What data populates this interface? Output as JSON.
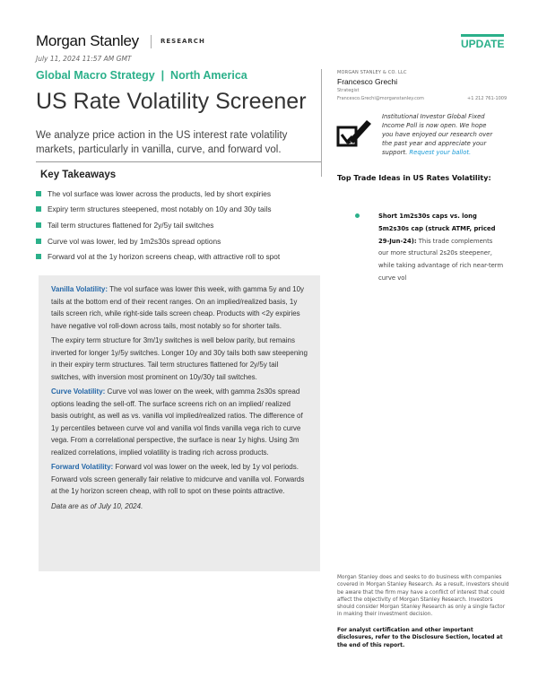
{
  "header": {
    "brand": "Morgan Stanley",
    "section": "RESEARCH",
    "badge": "UPDATE",
    "date": "July 11, 2024 11:57 AM GMT",
    "series": "Global Macro Strategy  |  North America",
    "title": "US Rate Volatility Screener",
    "subtitle": "We analyze price action in the US interest rate volatility markets, particularly in vanilla, curve, and forward vol."
  },
  "key_takeaways": {
    "title": "Key Takeaways",
    "items": [
      "The vol surface was lower across the products, led by short expiries",
      "Expiry term structures steepened, most notably on 10y and 30y tails",
      "Tail term structures flattened for 2y/5y tail switches",
      "Curve vol was lower, led by 1m2s30s spread options",
      "Forward vol at the 1y horizon screens cheap, with attractive roll to spot"
    ]
  },
  "summary": {
    "vanilla_label": "Vanilla Volatility:",
    "vanilla_text": " The vol surface was lower this week, with gamma 5y and 10y tails at the bottom end of their recent ranges. On an implied/realized basis, 1y tails screen rich, while right-side tails screen cheap. Products with <2y expiries have negative vol roll-down across tails, most notably so for shorter tails.",
    "term_text": "The expiry term structure for 3m/1y switches is well below parity, but remains inverted for longer 1y/5y switches. Longer 10y and 30y tails both saw steepening in their expiry term structures. Tail term structures flattened for 2y/5y tail switches, with inversion most prominent on 10y/30y tail switches.",
    "curve_label": "Curve Volatility:",
    "curve_text": " Curve vol was lower on the week, with gamma 2s30s spread options leading the sell-off. The surface screens rich on an implied/ realized basis outright, as well as vs. vanilla vol implied/realized ratios. The difference of 1y percentiles between curve vol and vanilla vol finds vanilla vega rich to curve vega. From a correlational perspective, the surface is near 1y highs. Using 3m realized correlations, implied volatility is trading rich across products.",
    "forward_label": "Forward Volatility:",
    "forward_text": " Forward vol was lower on the week, led by 1y vol periods. Forward vols screen generally fair relative to midcurve and vanilla vol. Forwards at the 1y horizon screen cheap, with roll to spot on these points attractive.",
    "data_note": "Data are as of July 10, 2024."
  },
  "author": {
    "firm": "MORGAN STANLEY & CO. LLC",
    "name": "Francesco Grechi",
    "role": "Strategist",
    "email": "Francesco.Grechi@morganstanley.com",
    "phone": "+1 212 761-1009"
  },
  "poll": {
    "text": "Institutional Investor Global Fixed Income Poll is now open. We hope you have enjoyed our research over the past year and appreciate your support. ",
    "link": "Request your ballot.",
    "icon": "checkbox-pen-icon"
  },
  "trade_ideas": {
    "title": "Top Trade Ideas in US Rates Volatility:",
    "items": [
      {
        "bold": "Short 1m2s30s caps vs. long 5m2s30s cap (struck ATMF, priced 29-Jun-24):",
        "text": " This trade complements our more structural 2s20s steepener, while taking advantage of rich near-term curve vol"
      }
    ]
  },
  "disclaimer": {
    "text": "Morgan Stanley does and seeks to do business with companies covered in Morgan Stanley Research. As a result, investors should be aware that the firm may have a conflict of interest that could affect the objectivity of Morgan Stanley Research. Investors should consider Morgan Stanley Research as only a single factor in making their investment decision.",
    "bold_pre": "For analyst certification and other important disclosures, ",
    "bold_link": "refer to the Disclosure Section",
    "bold_post": ", located at the end of this report."
  },
  "colors": {
    "accent": "#2bb08a",
    "link": "#2467a8",
    "box": "#ebebeb"
  }
}
